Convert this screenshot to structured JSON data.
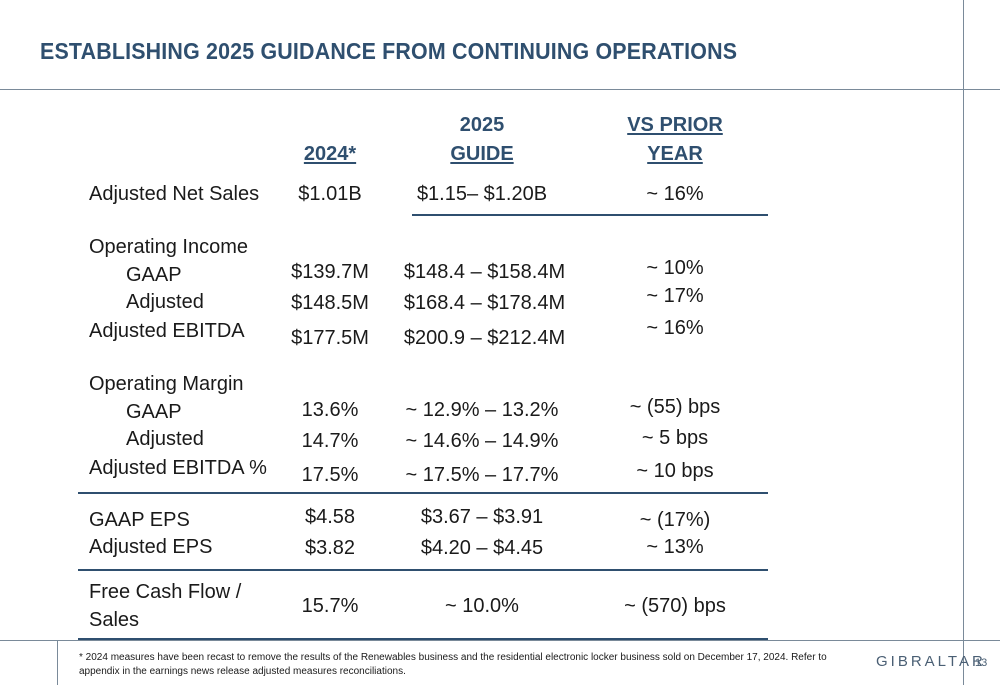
{
  "title": "ESTABLISHING 2025 GUIDANCE FROM CONTINUING OPERATIONS",
  "columns": {
    "col2024": "2024*",
    "guide_line1": "2025",
    "guide_line2": "GUIDE",
    "vs_line1": "VS PRIOR",
    "vs_line2": "YEAR"
  },
  "rows": {
    "net_sales": {
      "label": "Adjusted Net Sales",
      "y2024": "$1.01B",
      "guide": "$1.15– $1.20B",
      "vs": "~ 16%"
    },
    "op_income": {
      "label": "Operating Income"
    },
    "op_income_gaap": {
      "label": "GAAP",
      "y2024": "$139.7M",
      "guide": "$148.4 – $158.4M",
      "vs": "~ 10%"
    },
    "op_income_adj": {
      "label": "Adjusted",
      "y2024": "$148.5M",
      "guide": "$168.4 – $178.4M",
      "vs": "~ 17%"
    },
    "ebitda": {
      "label": "Adjusted EBITDA",
      "y2024": "$177.5M",
      "guide": "$200.9 – $212.4M",
      "vs": "~ 16%"
    },
    "op_margin": {
      "label": "Operating Margin"
    },
    "op_margin_gaap": {
      "label": "GAAP",
      "y2024": "13.6%",
      "guide": "~ 12.9% – 13.2%",
      "vs": "~ (55) bps"
    },
    "op_margin_adj": {
      "label": "Adjusted",
      "y2024": "14.7%",
      "guide": "~ 14.6% – 14.9%",
      "vs": "~  5 bps"
    },
    "ebitda_pct": {
      "label": "Adjusted EBITDA %",
      "y2024": "17.5%",
      "guide": "~ 17.5% – 17.7%",
      "vs": "~  10 bps"
    },
    "gaap_eps": {
      "label": "GAAP EPS",
      "y2024": "$4.58",
      "guide": "$3.67 – $3.91",
      "vs": "~ (17%)"
    },
    "adj_eps": {
      "label": "Adjusted EPS",
      "y2024": "$3.82",
      "guide": "$4.20 – $4.45",
      "vs": "~ 13%"
    },
    "fcf": {
      "label_line1": "Free Cash Flow /",
      "label_line2": "Sales",
      "y2024": "15.7%",
      "guide": "~ 10.0%",
      "vs": "~ (570) bps"
    }
  },
  "footer": {
    "footnote": "* 2024 measures have been recast to remove the results of the Renewables business and the residential electronic locker business sold on December 17, 2024. Refer to appendix in the earnings news release adjusted measures reconciliations.",
    "logo": "GIBRALTAR",
    "page_number": "13"
  },
  "colors": {
    "title": "#2f4f6f",
    "rule": "#2f4f6f",
    "frame": "#7a8a99"
  }
}
